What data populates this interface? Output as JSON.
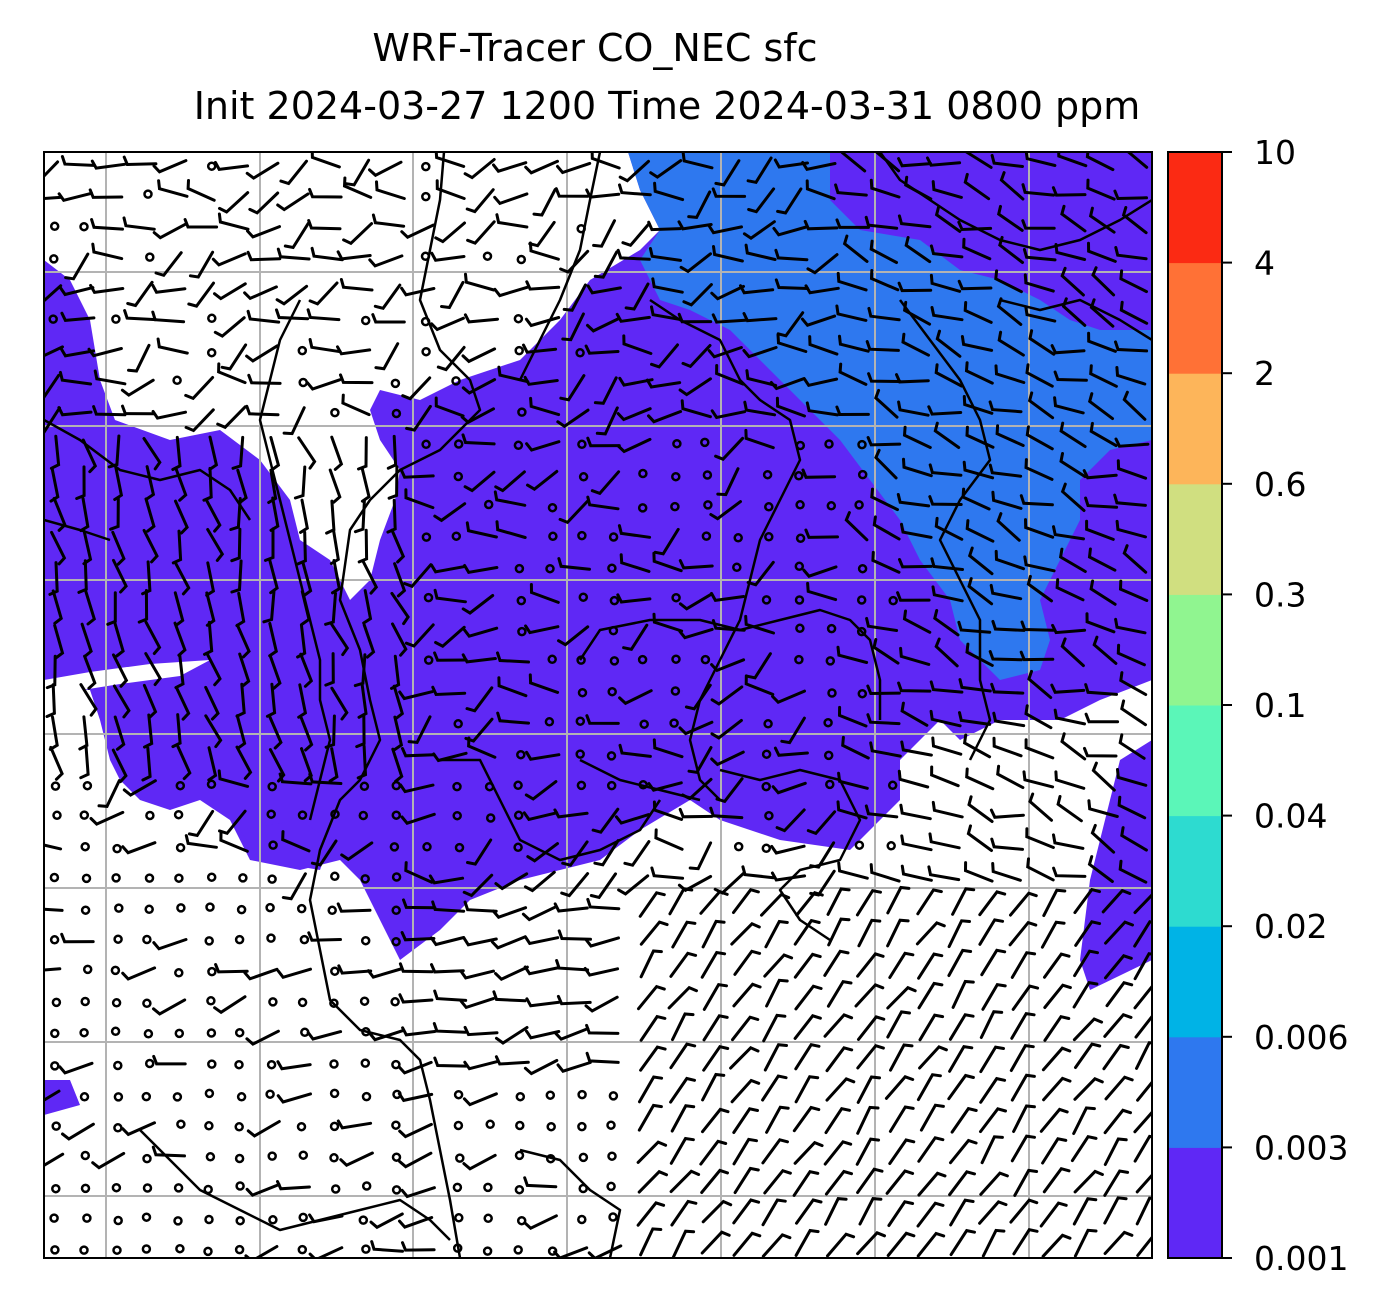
{
  "title": {
    "line1": "WRF-Tracer CO_NEC sfc",
    "line2": "Init 2024-03-27 1200 Time 2024-03-31 0800 ppm"
  },
  "colorbar": {
    "levels": [
      "0.001",
      "0.003",
      "0.006",
      "0.02",
      "0.04",
      "0.1",
      "0.3",
      "0.6",
      "2",
      "4",
      "10"
    ],
    "colors": [
      "#5f28f5",
      "#2e78ef",
      "#00b3e6",
      "#2ddbd0",
      "#5bf6b8",
      "#90f590",
      "#d0df80",
      "#fdb55a",
      "#ff7136",
      "#fb2a13"
    ]
  },
  "map": {
    "field_colors": {
      "low": "#5f28f5",
      "mid": "#2e78ef",
      "none": "#ffffff"
    },
    "grid_color": "#b3b3b3",
    "barb_color": "#000000"
  }
}
